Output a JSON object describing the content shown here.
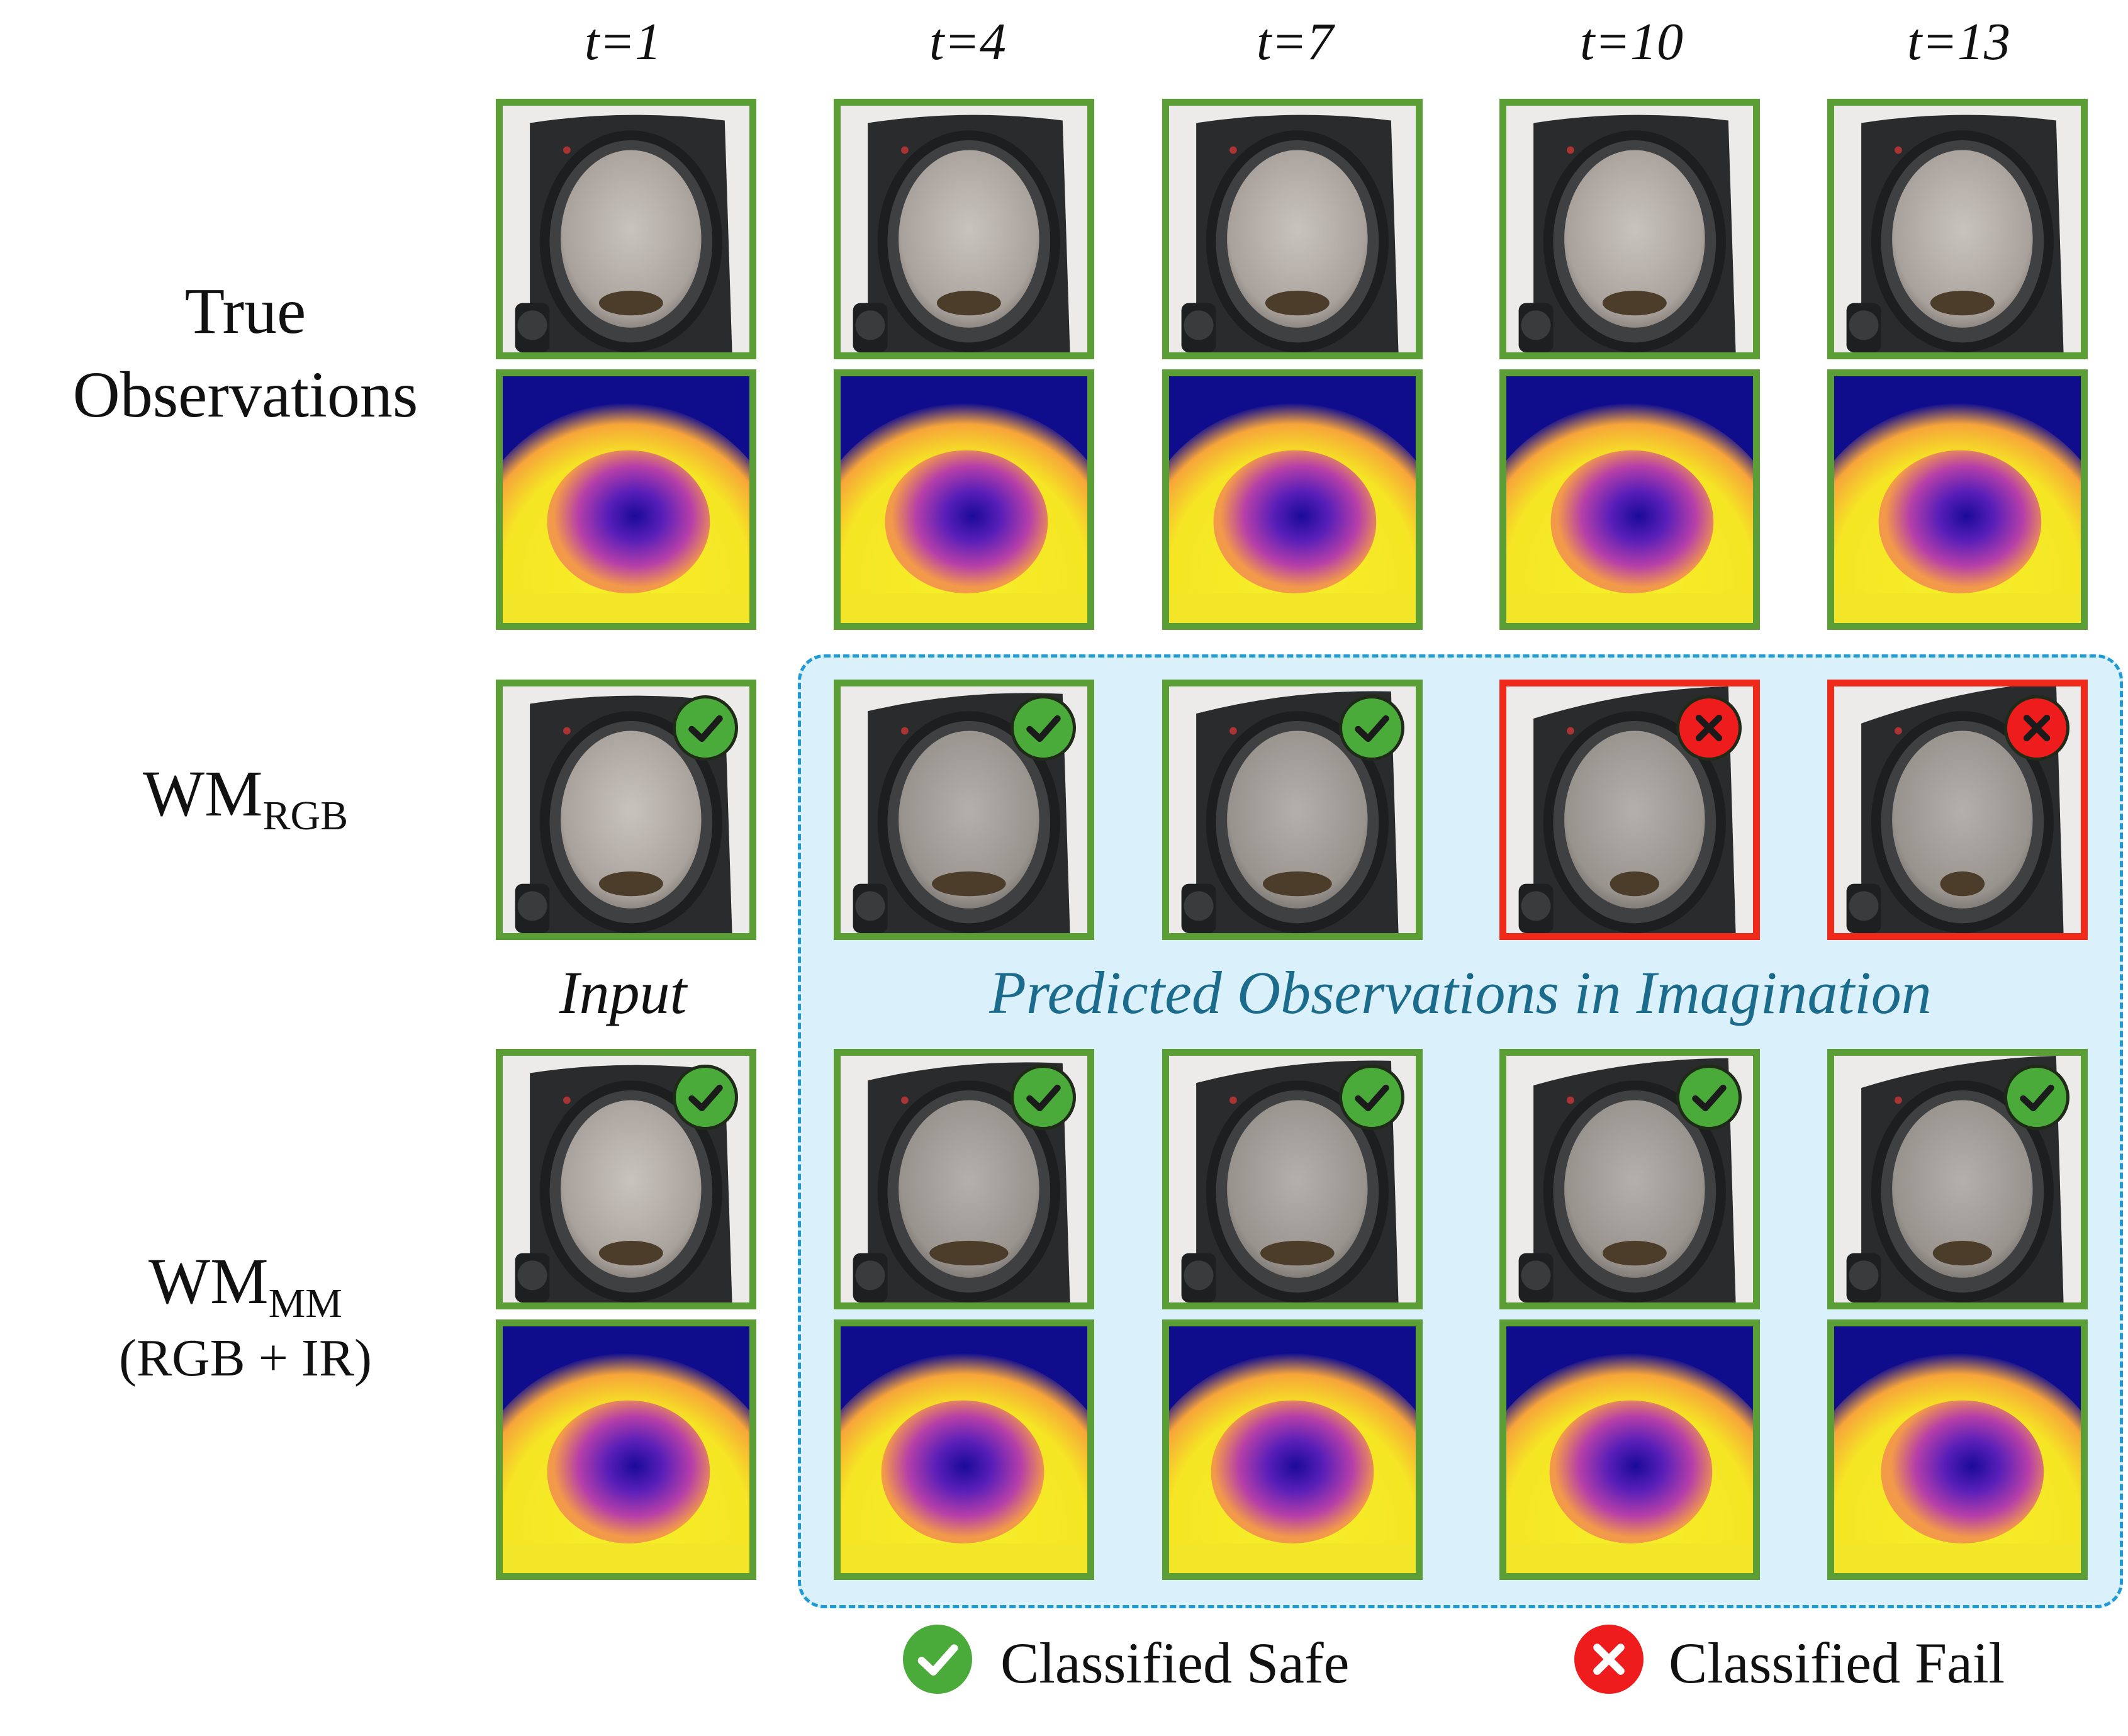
{
  "columns": [
    "t=1",
    "t=4",
    "t=7",
    "t=10",
    "t=13"
  ],
  "rows": {
    "true_obs": {
      "line1": "True",
      "line2": "Observations"
    },
    "wm_rgb": {
      "main": "WM",
      "sub": "RGB"
    },
    "wm_mm": {
      "main": "WM",
      "sub": "MM",
      "paren": "(RGB + IR)"
    }
  },
  "labels": {
    "input": "Input",
    "imagination": "Predicted Observations in Imagination"
  },
  "legend": {
    "safe": "Classified Safe",
    "fail": "Classified Fail"
  },
  "colors": {
    "safe_green": "#4aab3a",
    "fail_red": "#ee1c1c",
    "tile_border_safe": "#5a9e35",
    "tile_border_fail": "#f02a1b",
    "imagination_bg": "#daf0fa",
    "imagination_border": "#1f9ad2"
  },
  "wm_rgb_status": [
    "safe",
    "safe",
    "safe",
    "fail",
    "fail"
  ],
  "wm_mm_status": [
    "safe",
    "safe",
    "safe",
    "safe",
    "safe"
  ]
}
